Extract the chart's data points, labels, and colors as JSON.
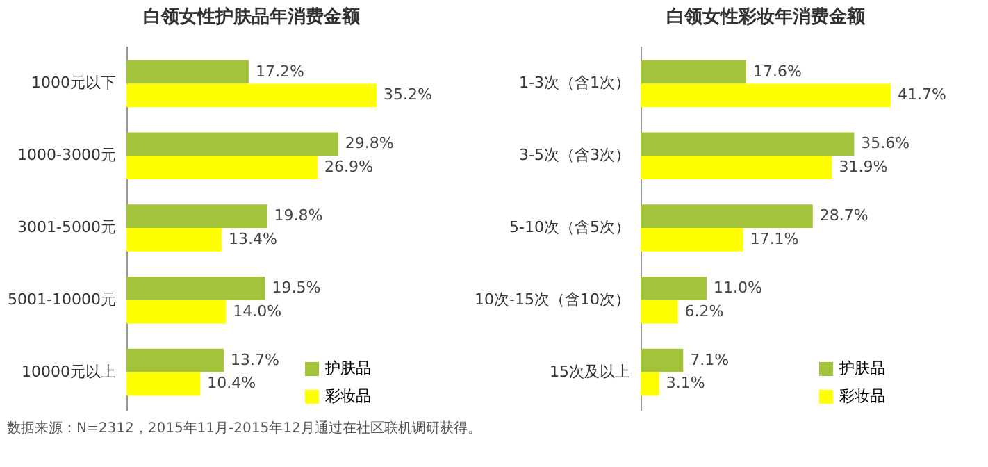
{
  "chart_data": [
    {
      "type": "bar",
      "orientation": "horizontal",
      "title": "白领女性护肤品年消费金额",
      "categories": [
        "1000元以下",
        "1000-3000元",
        "3001-5000元",
        "5001-10000元",
        "10000元以上"
      ],
      "series": [
        {
          "name": "护肤品",
          "color": "#a3c43a",
          "values": [
            17.2,
            29.8,
            19.8,
            19.5,
            13.7
          ],
          "value_labels": [
            "17.2%",
            "29.8%",
            "19.8%",
            "19.5%",
            "13.7%"
          ]
        },
        {
          "name": "彩妆品",
          "color": "#ffff00",
          "values": [
            35.2,
            26.9,
            13.4,
            14.0,
            10.4
          ],
          "value_labels": [
            "35.2%",
            "26.9%",
            "13.4%",
            "14.0%",
            "10.4%"
          ]
        }
      ],
      "tick_labels": "y",
      "legend": "bottom right",
      "annotations": [
        "数据来源：N=2312，2015年11月-2015年12月通过在社区联机调研获得。"
      ]
    },
    {
      "type": "bar",
      "orientation": "horizontal",
      "title": "白领女性彩妆年消费金额",
      "categories": [
        "1-3次（含1次）",
        "3-5次（含3次）",
        "5-10次（含5次）",
        "10次-15次（含10次）",
        "15次及以上"
      ],
      "series": [
        {
          "name": "护肤品",
          "color": "#a3c43a",
          "values": [
            17.6,
            35.6,
            28.7,
            11.0,
            7.1
          ],
          "value_labels": [
            "17.6%",
            "35.6%",
            "28.7%",
            "11.0%",
            "7.1%"
          ]
        },
        {
          "name": "彩妆品",
          "color": "#ffff00",
          "values": [
            41.7,
            31.9,
            17.1,
            6.2,
            3.1
          ],
          "value_labels": [
            "41.7%",
            "31.9%",
            "17.1%",
            "6.2%",
            "3.1%"
          ]
        }
      ],
      "tick_labels": "y",
      "legend": "bottom right"
    }
  ]
}
